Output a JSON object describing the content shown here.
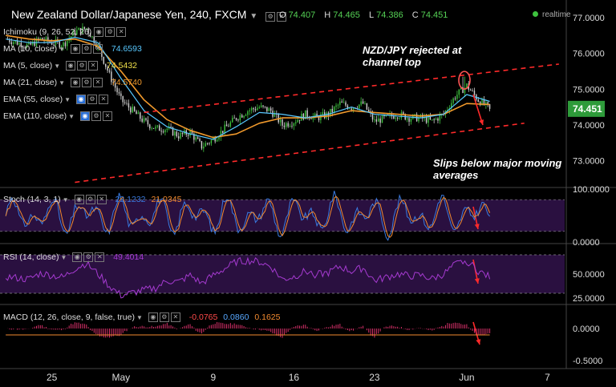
{
  "header": {
    "title": "New Zealand Dollar/Japanese Yen, 240, FXCM",
    "ohlc": [
      {
        "k": "O",
        "v": "74.407"
      },
      {
        "k": "H",
        "v": "74.465"
      },
      {
        "k": "L",
        "v": "74.386"
      },
      {
        "k": "C",
        "v": "74.451"
      }
    ],
    "realtime_label": "realtime"
  },
  "indicators": [
    {
      "label": "Ichimoku (9, 26, 52, 26)",
      "value": "",
      "color": "#dddddd"
    },
    {
      "label": "MA (10, close)",
      "value": "74.6593",
      "color": "#58c8ff"
    },
    {
      "label": "MA (5, close)",
      "value": "74.5432",
      "color": "#f0e04a"
    },
    {
      "label": "MA (21, close)",
      "value": "74.5740",
      "color": "#f29a2c"
    },
    {
      "label": "EMA (55, close)",
      "value": "",
      "color": "#dddddd"
    },
    {
      "label": "EMA (110, close)",
      "value": "",
      "color": "#dddddd"
    }
  ],
  "annotations": {
    "top": "NZD/JPY rejected at\nchannel top",
    "bottom": "Slips below major moving\naverages"
  },
  "colors": {
    "up": "#3ec23e",
    "down": "#d0d0d0",
    "ma10": "#58c8ff",
    "ma5": "#f0e04a",
    "ma21": "#f29a2c",
    "channel": "#ff2a2a",
    "stoch_k": "#3a7be0",
    "stoch_d": "#f28a30",
    "rsi": "#a53ad0",
    "macd": "#3a7be0",
    "signal": "#f28a30",
    "hist": "#d8306a",
    "price_tag": "#2e9b3a"
  },
  "chart_data": [
    {
      "type": "line",
      "name": "price",
      "x_ticks": [
        {
          "label": "25",
          "day": 25
        },
        {
          "label": "May",
          "day": 31
        },
        {
          "label": "9",
          "day": 39
        },
        {
          "label": "16",
          "day": 46
        },
        {
          "label": "23",
          "day": 53
        },
        {
          "label": "Jun",
          "day": 61
        },
        {
          "label": "7",
          "day": 68
        }
      ],
      "x_range_days": [
        20.5,
        69.5
      ],
      "y_ticks": [
        "77.0000",
        "76.0000",
        "75.0000",
        "74.0000",
        "73.0000"
      ],
      "ylim": [
        72.3,
        77.4
      ],
      "last_price": "74.451",
      "close_series": {
        "days": [
          21,
          22,
          23,
          24,
          25,
          26,
          27,
          28,
          29,
          30,
          31,
          32,
          33,
          34,
          35,
          36,
          37,
          38,
          39,
          40,
          41,
          42,
          43,
          44,
          45,
          46,
          47,
          48,
          49,
          50,
          51,
          52,
          53,
          54,
          55,
          56,
          57,
          58,
          59,
          60,
          61,
          62,
          63
        ],
        "values": [
          76.4,
          76.3,
          76.2,
          76.4,
          76.3,
          76.25,
          76.6,
          76.7,
          76.2,
          75.4,
          74.7,
          74.4,
          74.1,
          73.9,
          73.9,
          73.7,
          73.8,
          73.4,
          73.6,
          73.9,
          74.2,
          74.4,
          74.5,
          74.4,
          74.0,
          74.1,
          74.3,
          74.2,
          74.3,
          74.6,
          74.5,
          74.6,
          74.1,
          74.2,
          74.3,
          74.2,
          74.2,
          74.1,
          74.3,
          74.8,
          75.1,
          74.7,
          74.45
        ]
      },
      "ma10": {
        "days": [
          21,
          23,
          25,
          27,
          29,
          31,
          33,
          35,
          37,
          39,
          41,
          43,
          45,
          47,
          49,
          51,
          53,
          55,
          57,
          59,
          61,
          63
        ],
        "values": [
          76.4,
          76.3,
          76.3,
          76.45,
          76.3,
          75.3,
          74.4,
          73.95,
          73.75,
          73.6,
          73.95,
          74.35,
          74.3,
          74.2,
          74.3,
          74.5,
          74.3,
          74.25,
          74.2,
          74.3,
          74.85,
          74.66
        ]
      },
      "ma21": {
        "days": [
          21,
          23,
          25,
          27,
          29,
          31,
          33,
          35,
          37,
          39,
          41,
          43,
          45,
          47,
          49,
          51,
          53,
          55,
          57,
          59,
          61,
          63
        ],
        "values": [
          76.5,
          76.4,
          76.35,
          76.4,
          76.2,
          75.5,
          74.7,
          74.15,
          73.85,
          73.65,
          73.75,
          74.05,
          74.2,
          74.2,
          74.25,
          74.4,
          74.35,
          74.3,
          74.25,
          74.3,
          74.6,
          74.57
        ]
      },
      "channel": {
        "upper": {
          "days": [
            33,
            69
          ],
          "values": [
            74.35,
            75.7
          ]
        },
        "lower": {
          "days": [
            27,
            66
          ],
          "values": [
            72.4,
            74.05
          ]
        }
      },
      "rejection_point": {
        "day": 60.8,
        "value": 75.25
      }
    },
    {
      "type": "line",
      "name": "Stoch (14, 3, 1)",
      "k_value": "22.1232",
      "d_value": "21.0345",
      "y_ticks": [
        "100.0000",
        "0.0000"
      ],
      "ylim": [
        0,
        100
      ],
      "levels": [
        80,
        20
      ]
    },
    {
      "type": "line",
      "name": "RSI (14, close)",
      "value": "49.4014",
      "y_ticks": [
        "50.0000",
        "25.0000"
      ],
      "ylim": [
        20,
        80
      ],
      "levels": [
        70,
        30
      ]
    },
    {
      "type": "bar",
      "name": "MACD (12, 26, close, 9, false, true)",
      "hist_value": "-0.0765",
      "macd_value": "0.0860",
      "signal_value": "0.1625",
      "y_ticks": [
        "0.0000",
        "-0.5000"
      ],
      "ylim": [
        -0.6,
        0.35
      ]
    }
  ]
}
